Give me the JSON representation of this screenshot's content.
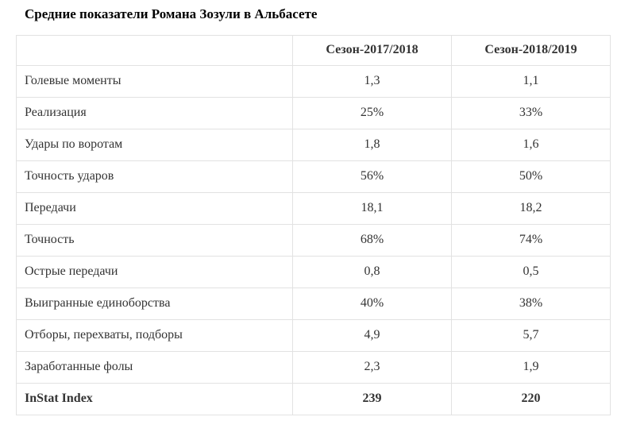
{
  "page": {
    "title": "Средние показатели Романа Зозули в Альбасете"
  },
  "colors": {
    "background": "#ffffff",
    "table_border": "#e2e2e2",
    "text": "#333333",
    "title_text": "#000000"
  },
  "table": {
    "header": {
      "col0": "",
      "col1": "Сезон-2017/2018",
      "col2": "Сезон-2018/2019"
    },
    "rows": [
      {
        "label": "Голевые моменты",
        "season1": "1,3",
        "season2": "1,1",
        "emphasis": false
      },
      {
        "label": "Реализация",
        "season1": "25%",
        "season2": "33%",
        "emphasis": false
      },
      {
        "label": "Удары по воротам",
        "season1": "1,8",
        "season2": "1,6",
        "emphasis": false
      },
      {
        "label": "Точность ударов",
        "season1": "56%",
        "season2": "50%",
        "emphasis": false
      },
      {
        "label": "Передачи",
        "season1": "18,1",
        "season2": "18,2",
        "emphasis": false
      },
      {
        "label": "Точность",
        "season1": "68%",
        "season2": "74%",
        "emphasis": false
      },
      {
        "label": "Острые передачи",
        "season1": "0,8",
        "season2": "0,5",
        "emphasis": false
      },
      {
        "label": "Выигранные единоборства",
        "season1": "40%",
        "season2": "38%",
        "emphasis": false
      },
      {
        "label": "Отборы, перехваты, подборы",
        "season1": "4,9",
        "season2": "5,7",
        "emphasis": false
      },
      {
        "label": "Заработанные фолы",
        "season1": "2,3",
        "season2": "1,9",
        "emphasis": false
      },
      {
        "label": "InStat Index",
        "season1": "239",
        "season2": "220",
        "emphasis": true
      }
    ]
  }
}
